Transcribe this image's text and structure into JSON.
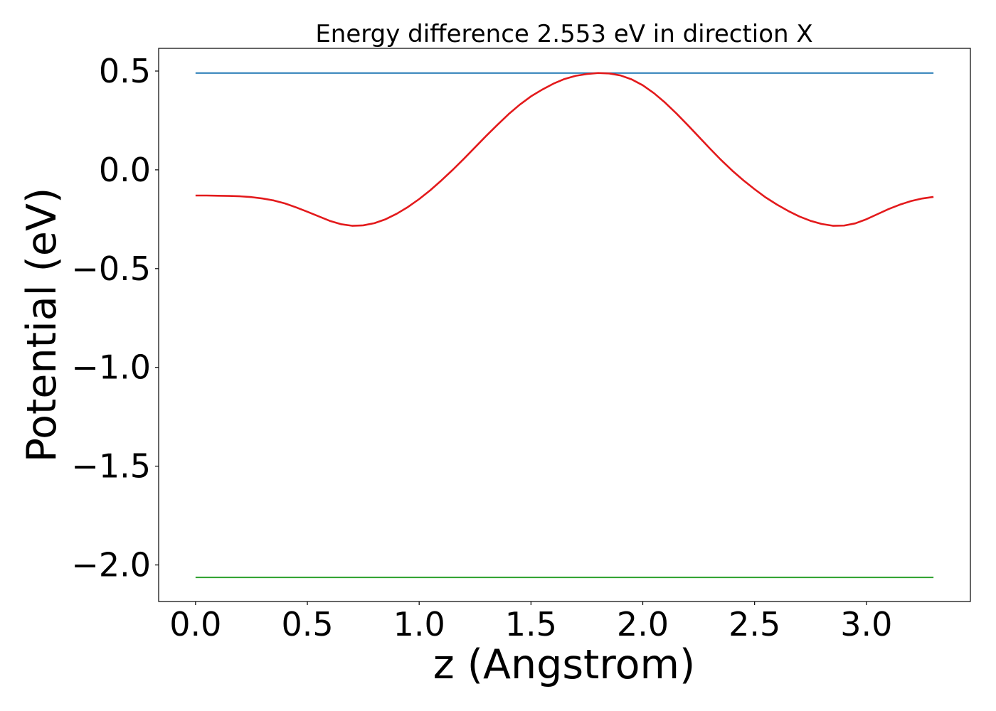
{
  "chart_data": {
    "type": "line",
    "title": "Energy difference 2.553 eV in direction X",
    "xlabel": "z (Angstrom)",
    "ylabel": "Potential (eV)",
    "xlim": [
      -0.165,
      3.465
    ],
    "ylim": [
      -2.185,
      0.615
    ],
    "xticks": [
      0.0,
      0.5,
      1.0,
      1.5,
      2.0,
      2.5,
      3.0
    ],
    "xtick_labels": [
      "0.0",
      "0.5",
      "1.0",
      "1.5",
      "2.0",
      "2.5",
      "3.0"
    ],
    "yticks": [
      0.5,
      0.0,
      -0.5,
      -1.0,
      -1.5,
      -2.0
    ],
    "ytick_labels": [
      "0.5",
      "0.0",
      "−0.5",
      "−1.0",
      "−1.5",
      "−2.0"
    ],
    "grid": false,
    "series": [
      {
        "color": "#1f77b4",
        "x": [
          0.0,
          3.3
        ],
        "y": [
          0.49,
          0.49
        ]
      },
      {
        "color": "#2ca02c",
        "x": [
          0.0,
          3.3
        ],
        "y": [
          -2.063,
          -2.063
        ]
      },
      {
        "color": "#e31a1c",
        "x": [
          0.0,
          0.05,
          0.1,
          0.15,
          0.2,
          0.25,
          0.3,
          0.35,
          0.4,
          0.45,
          0.5,
          0.55,
          0.6,
          0.65,
          0.7,
          0.75,
          0.8,
          0.85,
          0.9,
          0.95,
          1.0,
          1.05,
          1.1,
          1.15,
          1.2,
          1.25,
          1.3,
          1.35,
          1.4,
          1.45,
          1.5,
          1.55,
          1.6,
          1.65,
          1.7,
          1.75,
          1.8,
          1.85,
          1.9,
          1.95,
          2.0,
          2.05,
          2.1,
          2.15,
          2.2,
          2.25,
          2.3,
          2.35,
          2.4,
          2.45,
          2.5,
          2.55,
          2.6,
          2.65,
          2.7,
          2.75,
          2.8,
          2.85,
          2.9,
          2.95,
          3.0,
          3.05,
          3.1,
          3.15,
          3.2,
          3.25,
          3.3
        ],
        "y": [
          -0.13,
          -0.13,
          -0.131,
          -0.132,
          -0.134,
          -0.138,
          -0.145,
          -0.155,
          -0.17,
          -0.19,
          -0.212,
          -0.235,
          -0.258,
          -0.275,
          -0.283,
          -0.281,
          -0.27,
          -0.25,
          -0.222,
          -0.188,
          -0.148,
          -0.103,
          -0.053,
          0.0,
          0.056,
          0.114,
          0.172,
          0.228,
          0.282,
          0.33,
          0.372,
          0.406,
          0.436,
          0.46,
          0.476,
          0.485,
          0.49,
          0.488,
          0.478,
          0.458,
          0.428,
          0.388,
          0.34,
          0.286,
          0.228,
          0.168,
          0.108,
          0.05,
          -0.004,
          -0.053,
          -0.098,
          -0.14,
          -0.176,
          -0.208,
          -0.236,
          -0.258,
          -0.274,
          -0.283,
          -0.282,
          -0.271,
          -0.25,
          -0.224,
          -0.198,
          -0.176,
          -0.158,
          -0.145,
          -0.137
        ]
      }
    ]
  }
}
